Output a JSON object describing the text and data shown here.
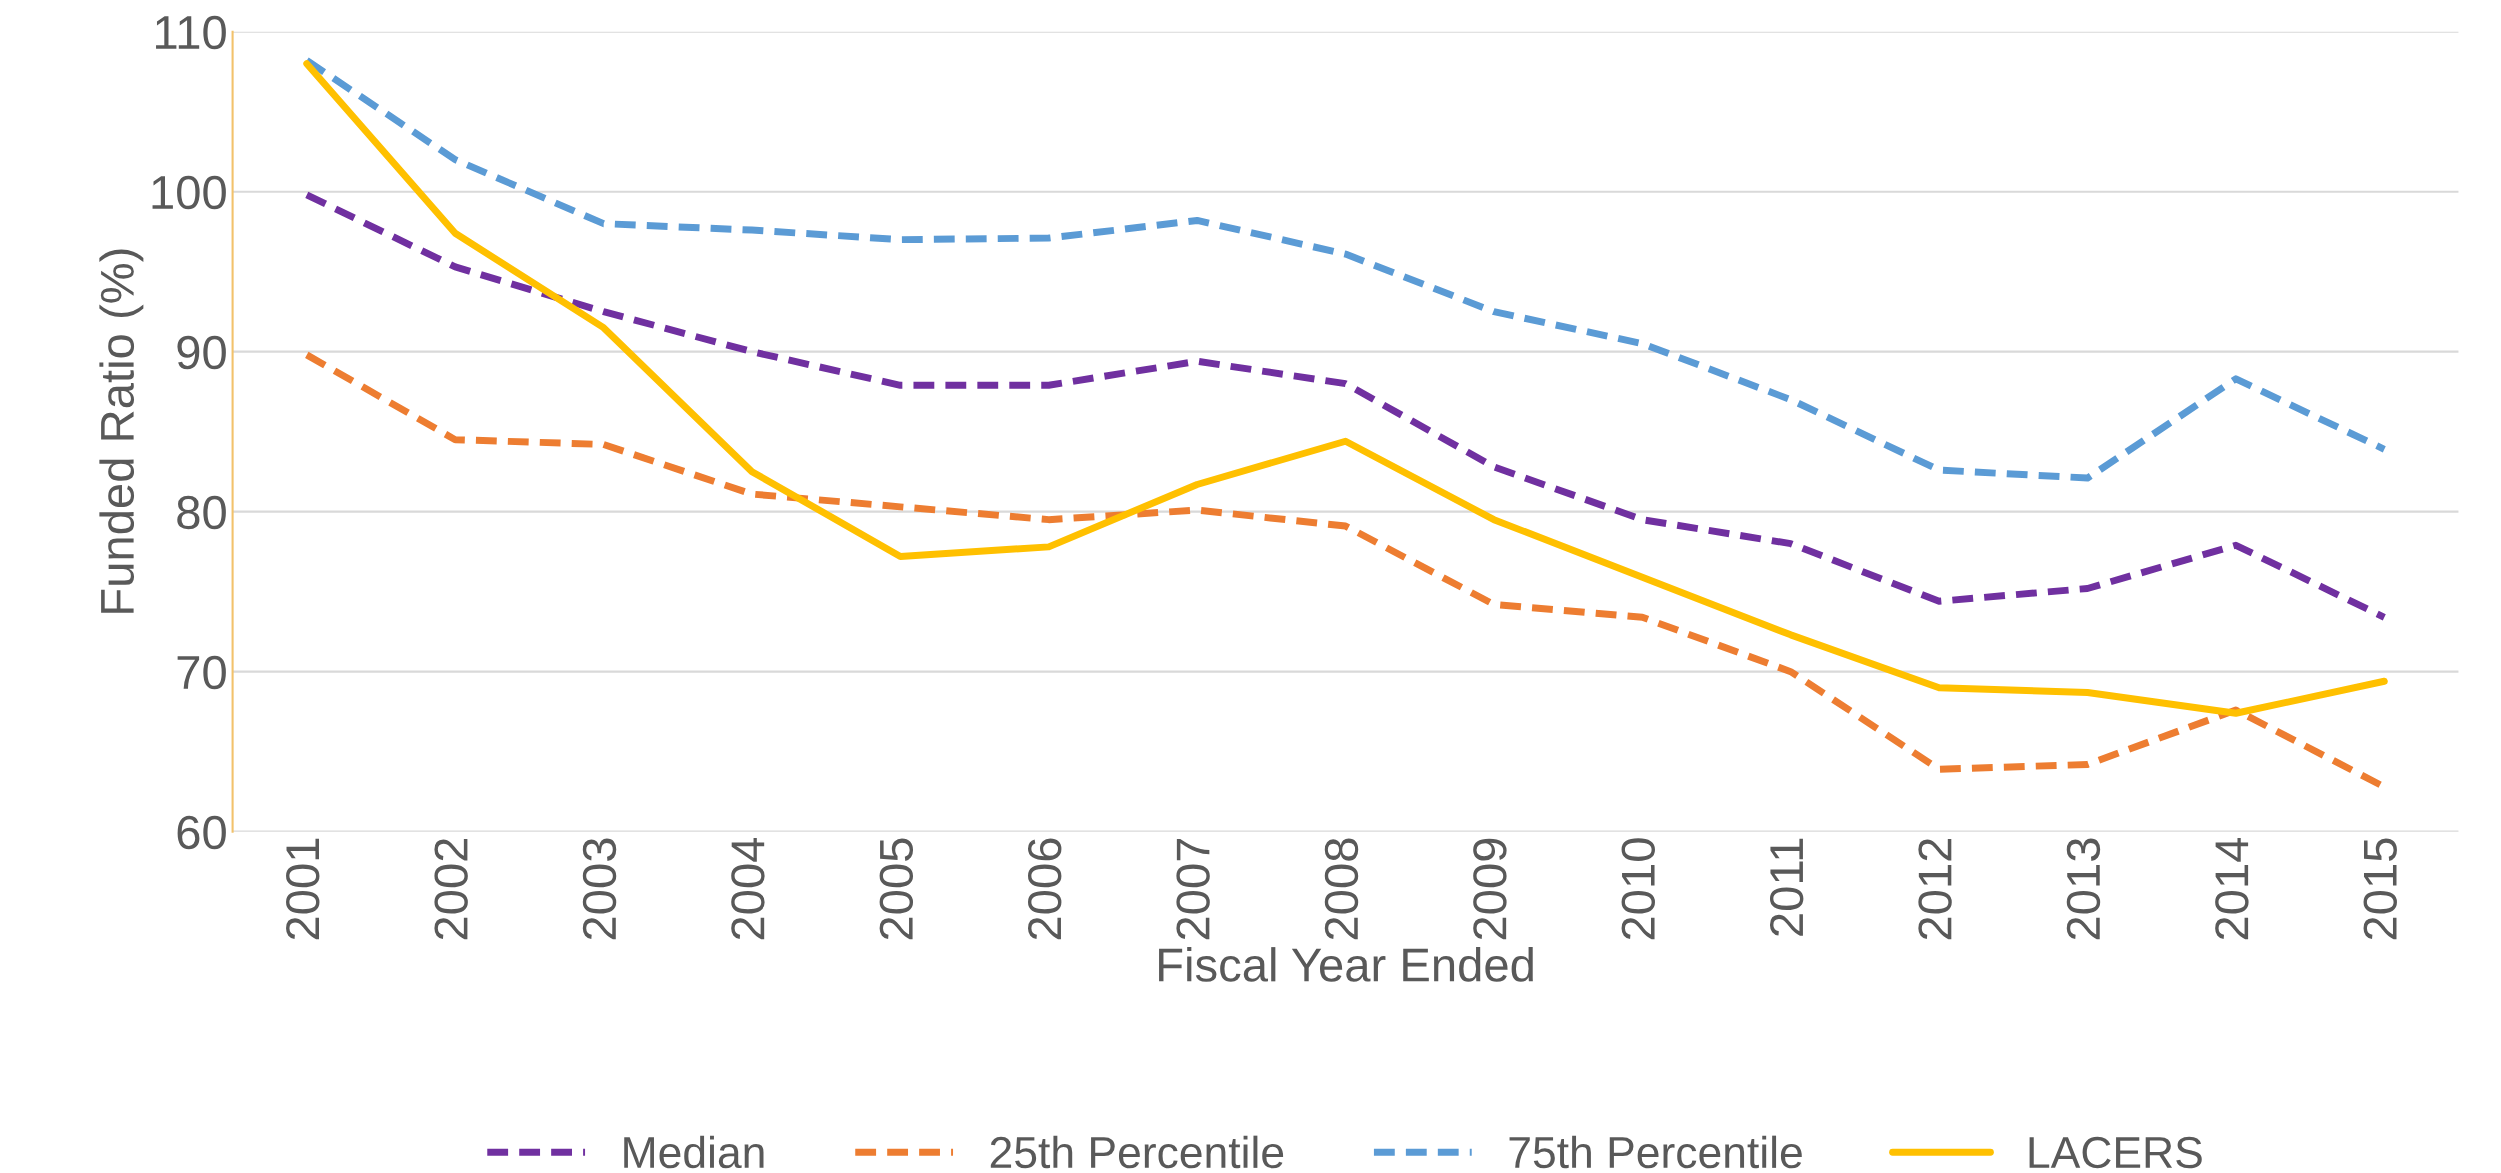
{
  "chart_data": {
    "type": "line",
    "xlabel": "Fiscal Year Ended",
    "ylabel": "Funded Ratio (%)",
    "categories": [
      "2001",
      "2002",
      "2003",
      "2004",
      "2005",
      "2006",
      "2007",
      "2008",
      "2009",
      "2010",
      "2011",
      "2012",
      "2013",
      "2014",
      "2015"
    ],
    "series": [
      {
        "name": "Median",
        "color": "#7030a0",
        "line_style": "dashed",
        "values": [
          99.8,
          95.3,
          92.5,
          90,
          87.9,
          87.9,
          89.4,
          88,
          82.8,
          79.5,
          78,
          74.4,
          75.2,
          77.9,
          73.4
        ]
      },
      {
        "name": "25th Percentile",
        "color": "#ed7d31",
        "line_style": "dashed",
        "values": [
          89.8,
          84.5,
          84.2,
          81.1,
          80.3,
          79.5,
          80.1,
          79.1,
          74.2,
          73.4,
          70,
          63.9,
          64.2,
          67.6,
          62.8
        ]
      },
      {
        "name": "75th Percentile",
        "color": "#5b9bd5",
        "line_style": "dashed",
        "values": [
          108.2,
          102,
          98,
          97.6,
          97,
          97.1,
          98.2,
          96.1,
          92.5,
          90.5,
          87,
          82.6,
          82.1,
          88.3,
          83.9
        ]
      },
      {
        "name": "LACERS",
        "color": "#ffc000",
        "line_style": "solid",
        "values": [
          108,
          97.4,
          91.5,
          82.5,
          77.2,
          77.8,
          81.7,
          84.4,
          79.5,
          75.9,
          72.3,
          69,
          68.7,
          67.4,
          69.4
        ]
      }
    ],
    "ylim": [
      60,
      110
    ],
    "yticks": [
      60,
      70,
      80,
      90,
      100,
      110
    ],
    "grid": "y",
    "legend": "bottom",
    "marker": "none"
  }
}
